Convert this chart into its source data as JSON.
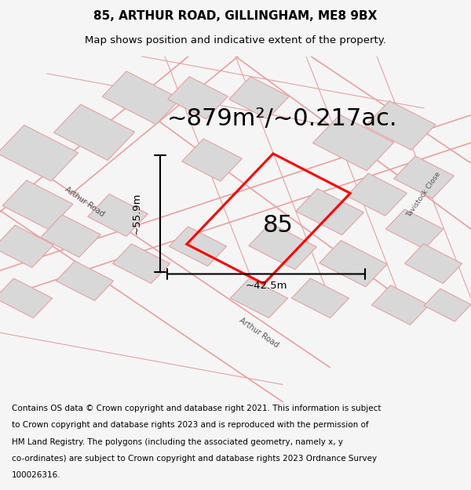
{
  "title": "85, ARTHUR ROAD, GILLINGHAM, ME8 9BX",
  "subtitle": "Map shows position and indicative extent of the property.",
  "area_text": "~879m²/~0.217ac.",
  "dim_width": "~42.5m",
  "dim_height": "~55.9m",
  "property_label": "85",
  "footer": "Contains OS data © Crown copyright and database right 2021. This information is subject to Crown copyright and database rights 2023 and is reproduced with the permission of HM Land Registry. The polygons (including the associated geometry, namely x, y co-ordinates) are subject to Crown copyright and database rights 2023 Ordnance Survey 100026316.",
  "bg_color": "#f5f5f5",
  "map_bg": "#f8f0f0",
  "road_color": "#e8a0a0",
  "highlight_color": "#ff0000",
  "building_fill": "#d8d8d8",
  "title_fontsize": 11,
  "subtitle_fontsize": 9.5,
  "area_fontsize": 22,
  "label_fontsize": 22,
  "footer_fontsize": 7.5
}
